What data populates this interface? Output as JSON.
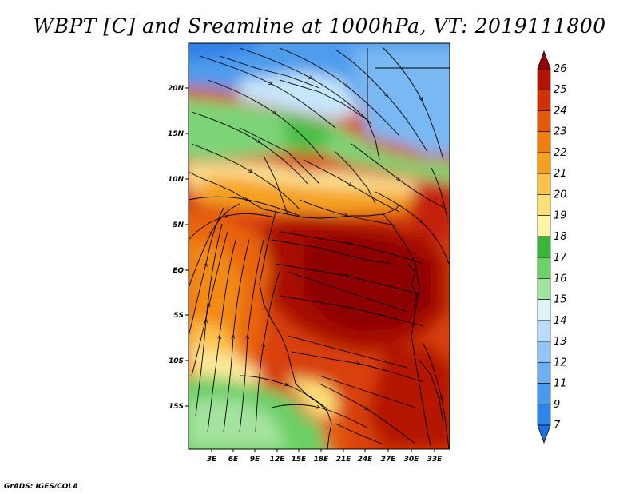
{
  "title": "WBPT [C] and Sreamline at 1000hPa, VT: 2019111800",
  "credit": "GrADS: IGES/COLA",
  "map": {
    "lon_range": [
      0,
      36
    ],
    "lat_range": [
      -20,
      25
    ],
    "lon_ticks": [
      "3E",
      "6E",
      "9E",
      "12E",
      "15E",
      "18E",
      "21E",
      "24E",
      "27E",
      "30E",
      "33E"
    ],
    "lat_ticks": [
      "20N",
      "15N",
      "10N",
      "5N",
      "EQ",
      "5S",
      "10S",
      "15S"
    ],
    "variable": "Wet-bulb potential temperature with streamlines",
    "level": "1000hPa"
  },
  "colorbar": {
    "labels": [
      "7",
      "9",
      "11",
      "12",
      "13",
      "14",
      "15",
      "16",
      "17",
      "18",
      "19",
      "20",
      "21",
      "22",
      "23",
      "24",
      "25",
      "26"
    ],
    "colors": [
      "#1e6ee6",
      "#2f86ea",
      "#4a9aee",
      "#6cb0f2",
      "#92c6f6",
      "#b8dcfa",
      "#e2f4fb",
      "#a2e39c",
      "#6cd168",
      "#3ab539",
      "#fff4a8",
      "#fde07a",
      "#fbc24c",
      "#f7a020",
      "#f07e10",
      "#e45a0c",
      "#d03208",
      "#b41406",
      "#960402"
    ]
  },
  "colors": {
    "land_outline": "#000000",
    "streamline": "#000000"
  }
}
